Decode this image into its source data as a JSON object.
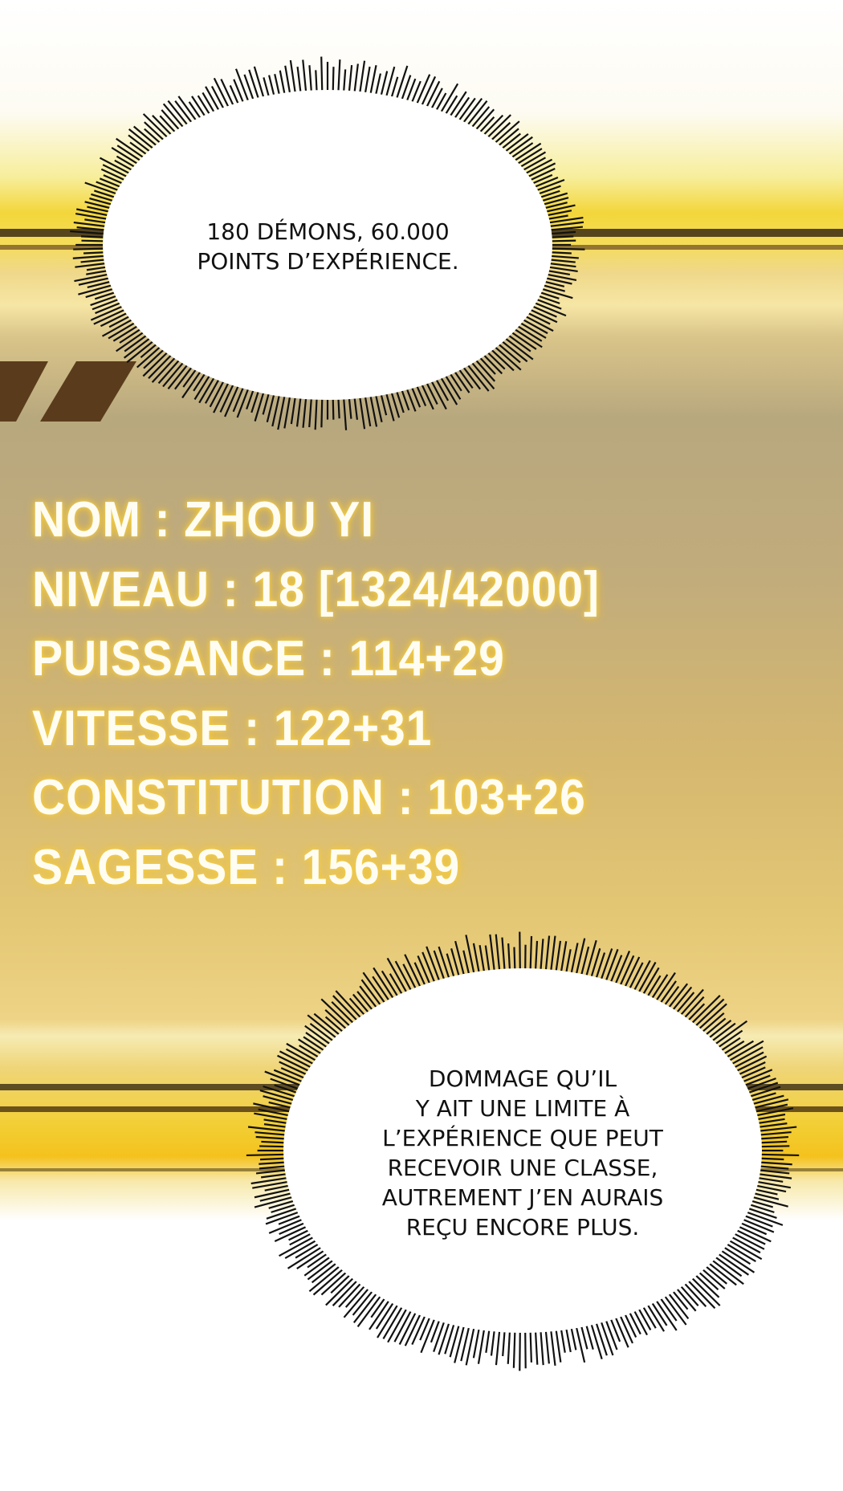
{
  "bubble_top": {
    "lines": [
      "180 DÉMONS, 60.000",
      "POINTS D’EXPÉRIENCE."
    ]
  },
  "status_window": {
    "stats": [
      {
        "text": "NOM : ZHOU YI"
      },
      {
        "text": "NIVEAU : 18 [1324/42000]"
      },
      {
        "text": "PUISSANCE : 114+29"
      },
      {
        "text": "VITESSE : 122+31"
      },
      {
        "text": "CONSTITUTION : 103+26"
      },
      {
        "text": "SAGESSE : 156+39"
      }
    ]
  },
  "bubble_bottom": {
    "lines": [
      "DOMMAGE QU’IL",
      "Y AIT UNE LIMITE À",
      "L’EXPÉRIENCE QUE PEUT",
      "RECEVOIR UNE CLASSE,",
      "AUTREMENT J’EN AURAIS",
      "REÇU ENCORE PLUS."
    ]
  },
  "colors": {
    "gold": "#f3d63a",
    "panel": "#c0ab7c",
    "text_glow": "#f5d24a"
  }
}
